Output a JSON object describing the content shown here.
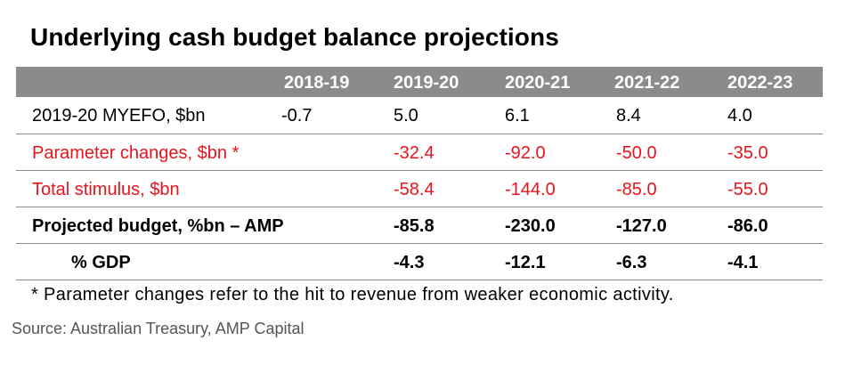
{
  "chart_data": {
    "type": "table",
    "title": "Underlying cash budget balance projections",
    "columns": [
      "",
      "2018-19",
      "2019-20",
      "2020-21",
      "2021-22",
      "2022-23"
    ],
    "rows": [
      {
        "label": "2019-20 MYEFO, $bn",
        "values": [
          "-0.7",
          "5.0",
          "6.1",
          "8.4",
          "4.0"
        ],
        "style": "normal"
      },
      {
        "label": "Parameter changes, $bn *",
        "values": [
          "",
          "-32.4",
          "-92.0",
          "-50.0",
          "-35.0"
        ],
        "style": "red"
      },
      {
        "label": "Total stimulus, $bn",
        "values": [
          "",
          "-58.4",
          "-144.0",
          "-85.0",
          "-55.0"
        ],
        "style": "red"
      },
      {
        "label": "Projected budget, %bn – AMP",
        "values": [
          "",
          "-85.8",
          "-230.0",
          "-127.0",
          "-86.0"
        ],
        "style": "bold"
      },
      {
        "label": "% GDP",
        "values": [
          "",
          "-4.3",
          "-12.1",
          "-6.3",
          "-4.1"
        ],
        "style": "bold-indent"
      }
    ],
    "footnote": "* Parameter changes refer to the hit to revenue from weaker economic activity.",
    "source": "Source: Australian Treasury, AMP Capital"
  },
  "colors": {
    "header_bg": "#8b8b8b",
    "header_text": "#ffffff",
    "highlight_red": "#e8141c",
    "source_grey": "#555555"
  }
}
